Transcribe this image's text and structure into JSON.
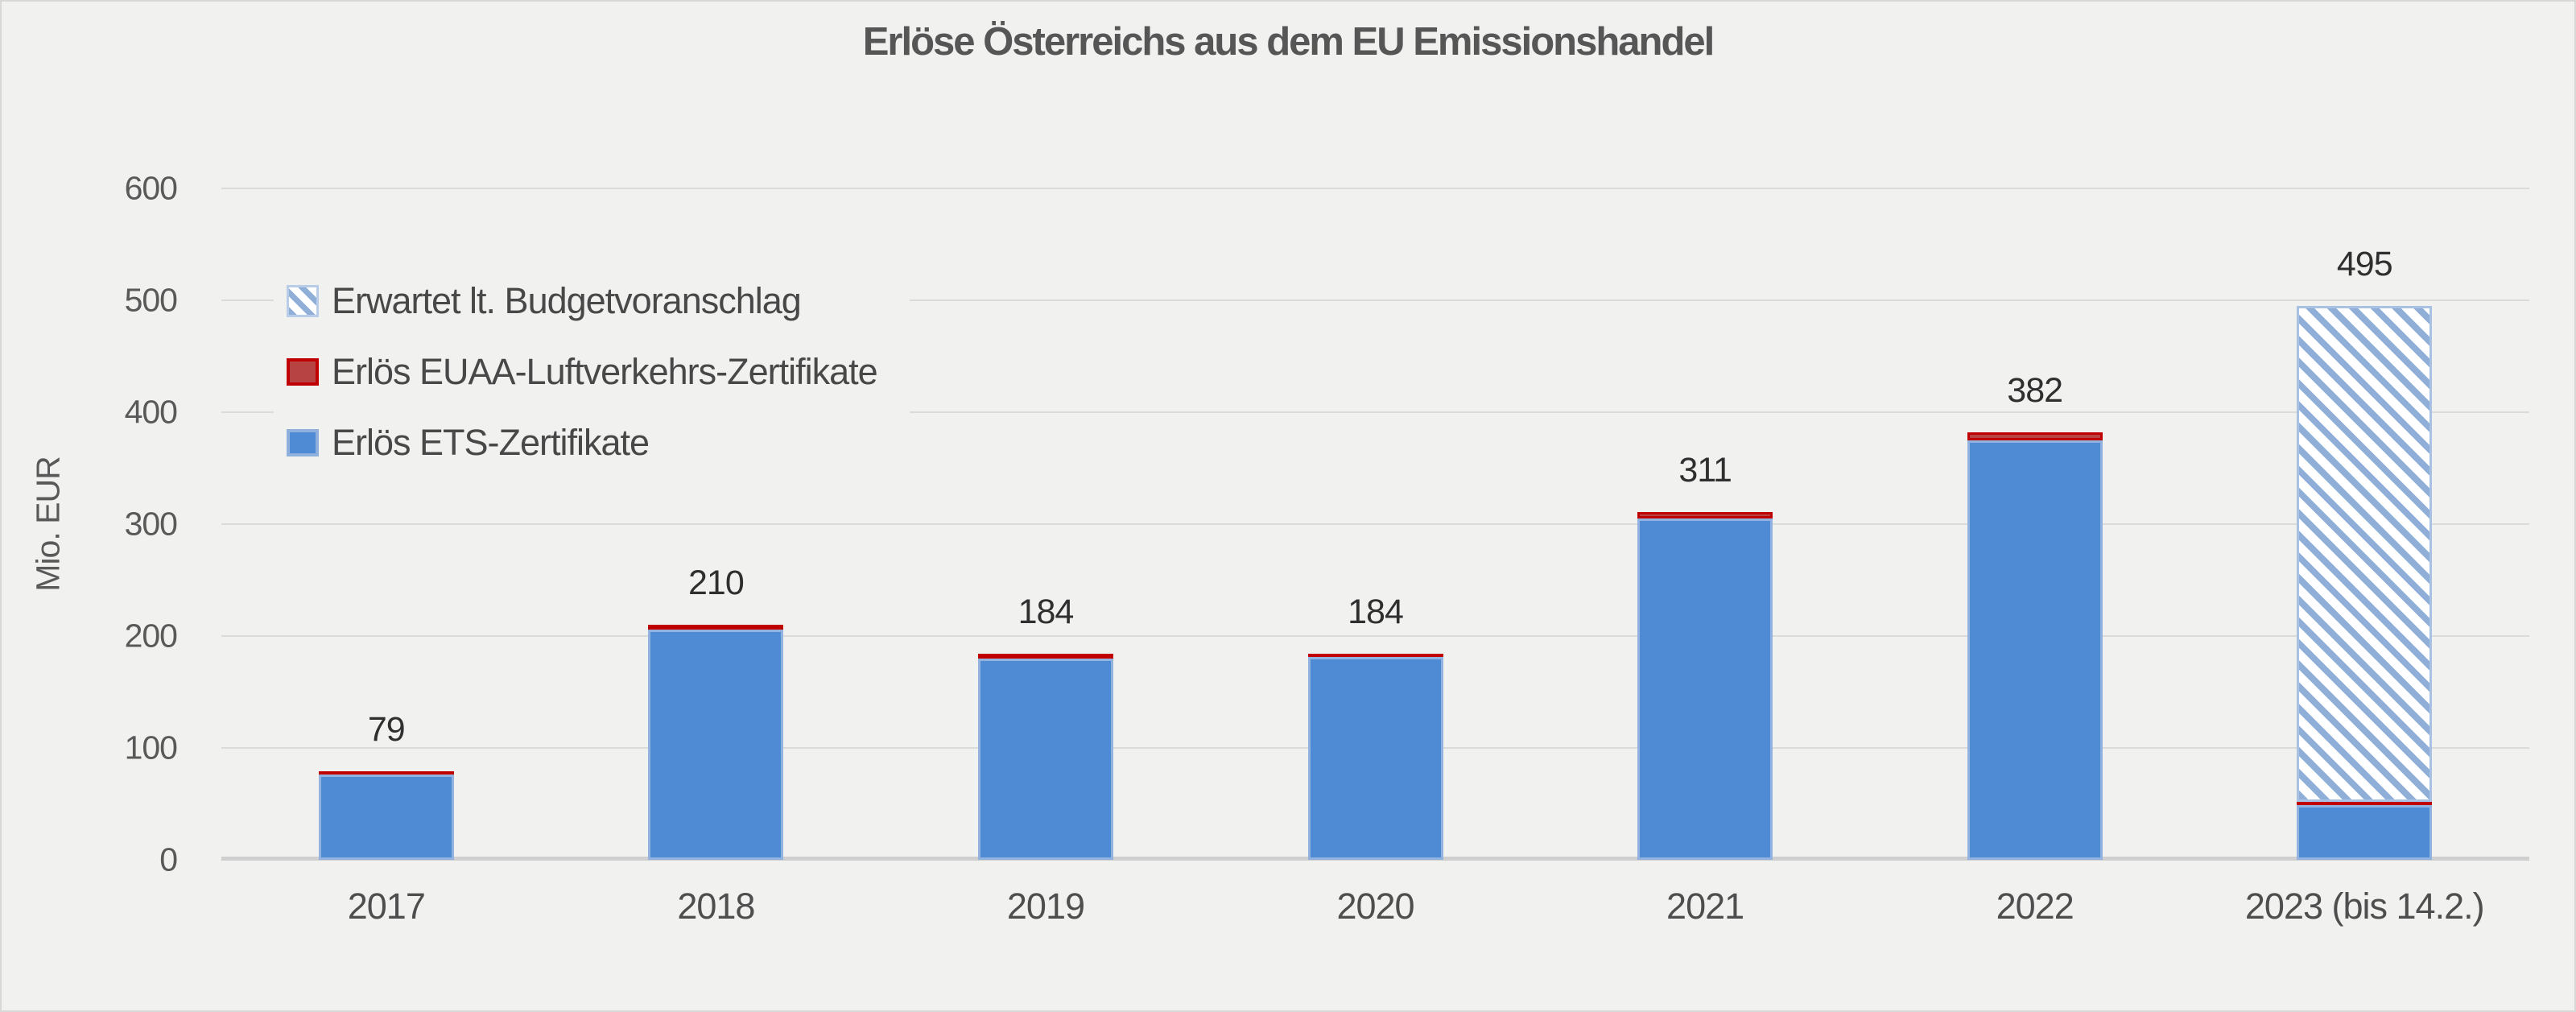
{
  "chart_data": {
    "type": "bar",
    "stacked": true,
    "title": "Erlöse Österreichs aus dem EU Emissionshandel",
    "ylabel": "Mio. EUR",
    "ylim": [
      0,
      600
    ],
    "yticks": [
      0,
      100,
      200,
      300,
      400,
      500,
      600
    ],
    "grid": "horizontal",
    "legend_position": "upper-left-inside",
    "categories": [
      "2017",
      "2018",
      "2019",
      "2020",
      "2021",
      "2022",
      "2023 (bis 14.2.)"
    ],
    "total_labels": [
      "79",
      "210",
      "184",
      "184",
      "311",
      "382",
      "495"
    ],
    "series": [
      {
        "key": "ets",
        "name": "Erlös ETS-Zertifikate",
        "color": "#4f8bd4",
        "pattern": "solid",
        "values": [
          76,
          206,
          180,
          181,
          305,
          375,
          49
        ]
      },
      {
        "key": "euaa",
        "name": "Erlös EUAA-Luftverkehrs-Zertifikate",
        "color": "#c00000",
        "pattern": "solid",
        "values": [
          3,
          4,
          4,
          3,
          6,
          7,
          3
        ]
      },
      {
        "key": "expected",
        "name": "Erwartet lt. Budgetvoranschlag",
        "color": "#8fafd9",
        "pattern": "diagonal-hatch",
        "values": [
          0,
          0,
          0,
          0,
          0,
          0,
          443
        ]
      }
    ],
    "legend": [
      {
        "label": "Erwartet lt. Budgetvoranschlag",
        "swatch": "hatch"
      },
      {
        "label": "Erlös EUAA-Luftverkehrs-Zertifikate",
        "swatch": "red"
      },
      {
        "label": "Erlös ETS-Zertifikate",
        "swatch": "blue"
      }
    ],
    "background_color": "#f1f1f0",
    "gridline_color": "#dbdbdb"
  }
}
